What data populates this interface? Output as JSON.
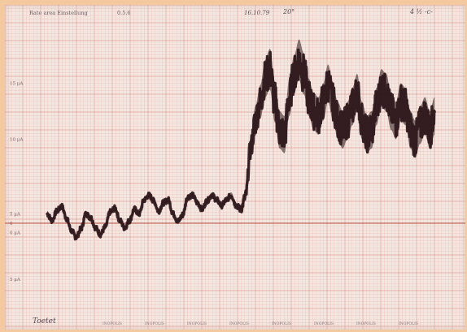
{
  "header": {
    "left_text": "Rate area Einstellung",
    "left_code": "0.5.6",
    "mid_text": "16.10.79",
    "mid_note": "20°",
    "right_note": "4 ½ -c-"
  },
  "footer": {
    "signature": "Toetet",
    "stamps": [
      "INOPOLIS",
      "INOPOLIS",
      "INOPOLIS",
      "INOPOLIS",
      "INOPOLIS",
      "INOPOLIS",
      "INOPOLIS",
      "INOPOLIS"
    ]
  },
  "colors": {
    "paper": "#f4e6e0",
    "grid_minor": "#e7b6ac",
    "grid_major": "#d9958a",
    "baseline": "#b04a3a",
    "trace": "#2a1418",
    "background": "#f5c9a0"
  },
  "chart_data": {
    "type": "line",
    "title": "",
    "xlabel": "",
    "ylabel": "",
    "x_unit": "seconds",
    "xlim": [
      0,
      42
    ],
    "ylim": [
      -10,
      22
    ],
    "grid": true,
    "legend": "none",
    "y_tick_labels": [
      {
        "value": 15,
        "label": "15 µA"
      },
      {
        "value": 9,
        "label": "10 µA"
      },
      {
        "value": 1,
        "label": "5 µA"
      },
      {
        "value": 0,
        "label": "0"
      },
      {
        "value": -1,
        "label": "0 µA"
      },
      {
        "value": -6,
        "label": "5 µA"
      }
    ],
    "baseline_value": 0,
    "series": [
      {
        "x": [
          0,
          0.5,
          1,
          1.5,
          2,
          2.5,
          3,
          3.5,
          4,
          4.5,
          5,
          5.5,
          6,
          6.5,
          7,
          7.5,
          8,
          8.5,
          9,
          9.5,
          10,
          10.5,
          11,
          11.5,
          12,
          12.5,
          13,
          13.5,
          14,
          14.5,
          15,
          15.5,
          16,
          16.5,
          17,
          17.5,
          18,
          18.5,
          19,
          19.5,
          20,
          20.5,
          21,
          21.5,
          22,
          22.5,
          23,
          23.5,
          24,
          24.5,
          25,
          25.5,
          26,
          26.5,
          27,
          27.5,
          28,
          28.5,
          29,
          29.5,
          30,
          30.5,
          31,
          31.5,
          32,
          32.5,
          33,
          33.5,
          34,
          34.5,
          35,
          35.5,
          36,
          36.5,
          37,
          37.5,
          38,
          38.5,
          39,
          39.5,
          40
        ],
        "y": [
          1.0,
          0.3,
          1.3,
          1.8,
          0.5,
          -0.8,
          -1.5,
          -0.6,
          1.0,
          0.6,
          -0.5,
          -1.2,
          -0.4,
          1.2,
          1.6,
          0.3,
          -0.5,
          0.3,
          1.5,
          1.0,
          2.5,
          3.0,
          2.4,
          1.3,
          2.2,
          2.5,
          1.0,
          0.2,
          0.9,
          2.8,
          3.0,
          2.2,
          1.5,
          2.4,
          3.0,
          2.5,
          1.9,
          2.5,
          3.0,
          1.9,
          1.5,
          3.0,
          8.0,
          11.0,
          13.0,
          15.5,
          16.5,
          13.0,
          10.0,
          9.5,
          13.5,
          16.0,
          17.5,
          16.0,
          13.5,
          12.0,
          11.5,
          13.0,
          15.0,
          13.0,
          11.0,
          10.0,
          11.0,
          12.5,
          14.0,
          11.0,
          9.5,
          10.0,
          12.5,
          14.5,
          14.0,
          12.0,
          11.0,
          13.0,
          12.5,
          10.0,
          9.0,
          10.5,
          11.5,
          10.0,
          11.5
        ],
        "amplitude": [
          0.3,
          0.3,
          0.3,
          0.3,
          0.3,
          0.3,
          0.3,
          0.3,
          0.3,
          0.3,
          0.3,
          0.3,
          0.3,
          0.3,
          0.3,
          0.3,
          0.3,
          0.3,
          0.3,
          0.3,
          0.3,
          0.3,
          0.3,
          0.3,
          0.3,
          0.3,
          0.3,
          0.3,
          0.3,
          0.3,
          0.3,
          0.3,
          0.3,
          0.3,
          0.3,
          0.3,
          0.3,
          0.3,
          0.3,
          0.3,
          0.4,
          0.6,
          1.2,
          1.6,
          1.8,
          2.0,
          2.2,
          2.2,
          2.0,
          2.0,
          2.0,
          2.0,
          2.2,
          2.2,
          2.0,
          2.0,
          2.0,
          2.0,
          2.0,
          2.0,
          2.0,
          2.0,
          2.0,
          2.0,
          2.0,
          2.0,
          2.0,
          2.0,
          2.0,
          2.0,
          2.0,
          2.0,
          2.0,
          2.0,
          2.0,
          2.0,
          2.0,
          2.0,
          2.0,
          2.0,
          2.0
        ]
      }
    ]
  }
}
